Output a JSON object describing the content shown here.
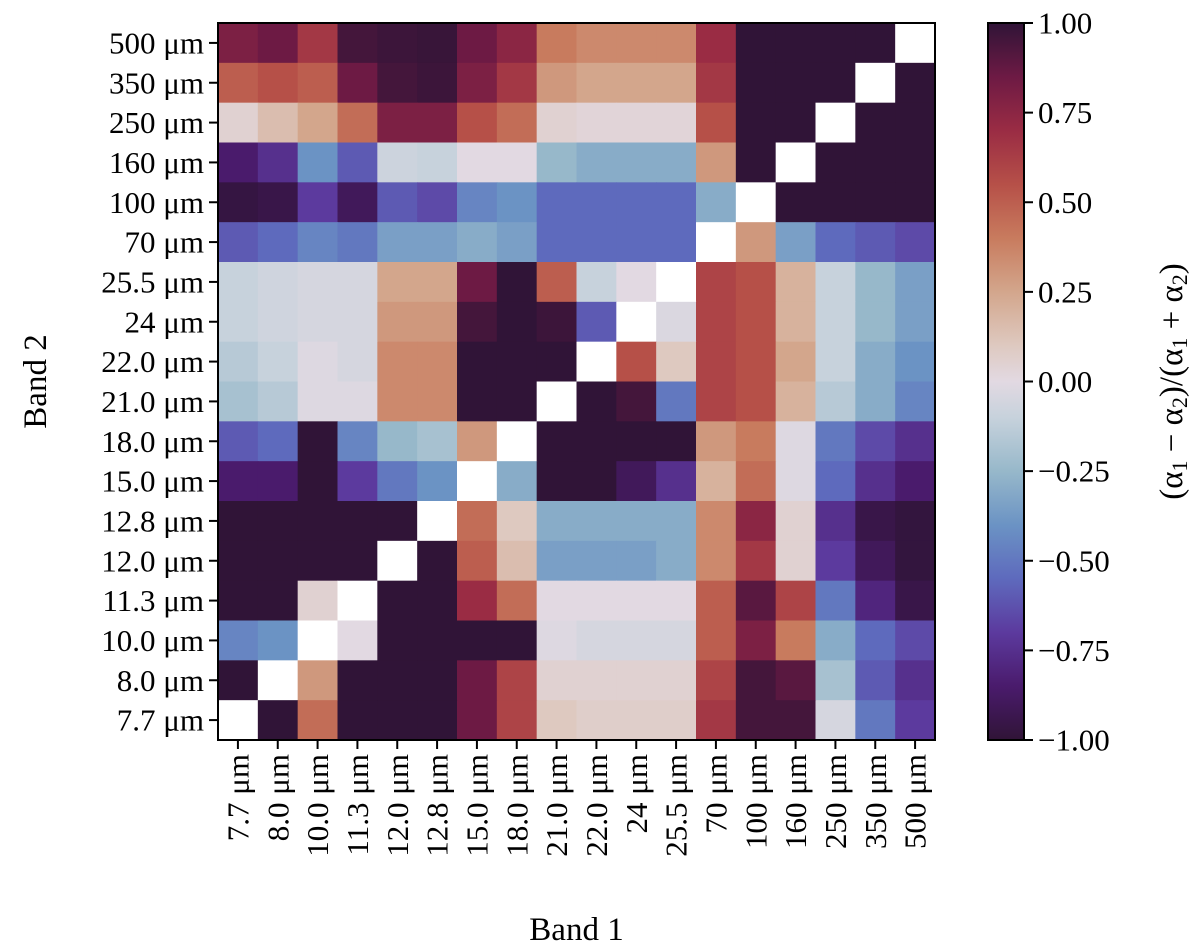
{
  "chart_data": {
    "type": "heatmap",
    "xlabel": "Band 1",
    "ylabel": "Band 2",
    "colorbar_label": "(α₁ − α₂)/(α₁ + α₂)",
    "colorbar_label_parts": [
      "(α",
      "1",
      " − α",
      "2",
      ")/(α",
      "1",
      " + α",
      "2",
      ")"
    ],
    "colormap": "twilight_shifted",
    "clim": [
      -1.0,
      1.0
    ],
    "colorbar_ticks": [
      "1.00",
      "0.75",
      "0.50",
      "0.25",
      "0.00",
      "−0.25",
      "−0.50",
      "−0.75",
      "−1.00"
    ],
    "colorbar_tick_values": [
      1.0,
      0.75,
      0.5,
      0.25,
      0.0,
      -0.25,
      -0.5,
      -0.75,
      -1.0
    ],
    "diagonal_color": "#ffffff",
    "x_categories": [
      "7.7 μm",
      "8.0 μm",
      "10.0 μm",
      "11.3 μm",
      "12.0 μm",
      "12.8 μm",
      "15.0 μm",
      "18.0 μm",
      "21.0 μm",
      "22.0 μm",
      "24 μm",
      "25.5 μm",
      "70 μm",
      "100 μm",
      "160 μm",
      "250 μm",
      "350 μm",
      "500 μm"
    ],
    "y_categories_top_to_bottom": [
      "500 μm",
      "350 μm",
      "250 μm",
      "160 μm",
      "100 μm",
      "70 μm",
      "25.5 μm",
      "24 μm",
      "22.0 μm",
      "21.0 μm",
      "18.0 μm",
      "15.0 μm",
      "12.8 μm",
      "12.0 μm",
      "11.3 μm",
      "10.0 μm",
      "8.0 μm",
      "7.7 μm"
    ],
    "values_rows_top_to_bottom": [
      [
        0.8,
        0.85,
        0.65,
        0.95,
        0.97,
        0.98,
        0.85,
        0.75,
        0.4,
        0.35,
        0.35,
        0.35,
        0.7,
        1.0,
        1.0,
        1.0,
        1.0,
        null
      ],
      [
        0.5,
        0.55,
        0.5,
        0.85,
        0.95,
        0.97,
        0.8,
        0.65,
        0.3,
        0.25,
        0.25,
        0.25,
        0.65,
        1.0,
        1.0,
        1.0,
        null,
        1.0
      ],
      [
        0.05,
        0.15,
        0.25,
        0.45,
        0.8,
        0.8,
        0.55,
        0.45,
        0.05,
        0.03,
        0.03,
        0.03,
        0.55,
        1.0,
        1.0,
        null,
        1.0,
        1.0
      ],
      [
        -0.85,
        -0.75,
        -0.4,
        -0.6,
        -0.08,
        -0.1,
        0.0,
        0.0,
        -0.25,
        -0.3,
        -0.3,
        -0.3,
        0.3,
        1.0,
        null,
        1.0,
        1.0,
        1.0
      ],
      [
        -0.97,
        -0.95,
        -0.7,
        -0.9,
        -0.6,
        -0.65,
        -0.45,
        -0.4,
        -0.55,
        -0.55,
        -0.55,
        -0.55,
        -0.3,
        null,
        1.0,
        1.0,
        1.0,
        1.0
      ],
      [
        -0.6,
        -0.55,
        -0.45,
        -0.5,
        -0.35,
        -0.35,
        -0.3,
        -0.35,
        -0.55,
        -0.55,
        -0.55,
        -0.55,
        null,
        0.3,
        -0.35,
        -0.55,
        -0.6,
        -0.65
      ],
      [
        -0.1,
        -0.07,
        -0.05,
        -0.05,
        0.25,
        0.25,
        0.85,
        1.0,
        0.5,
        -0.1,
        0.0,
        null,
        0.6,
        0.55,
        0.2,
        -0.1,
        -0.25,
        -0.35
      ],
      [
        -0.1,
        -0.07,
        -0.05,
        -0.05,
        0.3,
        0.3,
        0.95,
        1.0,
        0.97,
        -0.6,
        null,
        -0.03,
        0.6,
        0.55,
        0.2,
        -0.1,
        -0.25,
        -0.35
      ],
      [
        -0.15,
        -0.1,
        -0.02,
        -0.05,
        0.35,
        0.35,
        1.0,
        1.0,
        1.0,
        null,
        0.55,
        0.1,
        0.6,
        0.55,
        0.25,
        -0.1,
        -0.3,
        -0.4
      ],
      [
        -0.2,
        -0.15,
        -0.02,
        -0.02,
        0.35,
        0.35,
        1.0,
        1.0,
        null,
        1.0,
        0.95,
        -0.5,
        0.6,
        0.55,
        0.2,
        -0.15,
        -0.3,
        -0.45
      ],
      [
        -0.6,
        -0.55,
        1.0,
        -0.45,
        -0.25,
        -0.2,
        0.3,
        null,
        1.0,
        1.0,
        1.0,
        1.0,
        0.3,
        0.4,
        -0.02,
        -0.5,
        -0.65,
        -0.75
      ],
      [
        -0.85,
        -0.85,
        1.0,
        -0.7,
        -0.5,
        -0.4,
        null,
        -0.3,
        1.0,
        1.0,
        -0.9,
        -0.75,
        0.2,
        0.45,
        -0.02,
        -0.55,
        -0.75,
        -0.85
      ],
      [
        1.0,
        1.0,
        1.0,
        1.0,
        1.0,
        null,
        0.45,
        0.1,
        -0.3,
        -0.3,
        -0.3,
        -0.3,
        0.35,
        0.75,
        0.05,
        -0.75,
        -0.95,
        -0.98
      ],
      [
        1.0,
        1.0,
        1.0,
        1.0,
        null,
        1.0,
        0.5,
        0.15,
        -0.35,
        -0.35,
        -0.35,
        -0.3,
        0.35,
        0.65,
        0.05,
        -0.7,
        -0.9,
        -0.98
      ],
      [
        1.0,
        1.0,
        0.05,
        null,
        1.0,
        1.0,
        0.7,
        0.45,
        0.0,
        0.0,
        0.0,
        0.0,
        0.5,
        0.9,
        0.6,
        -0.5,
        -0.8,
        -0.95
      ],
      [
        -0.45,
        -0.4,
        null,
        0.0,
        1.0,
        1.0,
        1.0,
        1.0,
        -0.02,
        -0.05,
        -0.05,
        -0.05,
        0.5,
        0.8,
        0.4,
        -0.3,
        -0.55,
        -0.65
      ],
      [
        1.0,
        null,
        0.3,
        1.0,
        1.0,
        1.0,
        0.85,
        0.6,
        0.05,
        0.05,
        0.05,
        0.05,
        0.6,
        0.95,
        0.9,
        -0.2,
        -0.6,
        -0.75
      ],
      [
        null,
        1.0,
        0.45,
        1.0,
        1.0,
        1.0,
        0.85,
        0.6,
        0.1,
        0.07,
        0.07,
        0.07,
        0.65,
        0.95,
        0.95,
        -0.05,
        -0.5,
        -0.7
      ]
    ]
  }
}
